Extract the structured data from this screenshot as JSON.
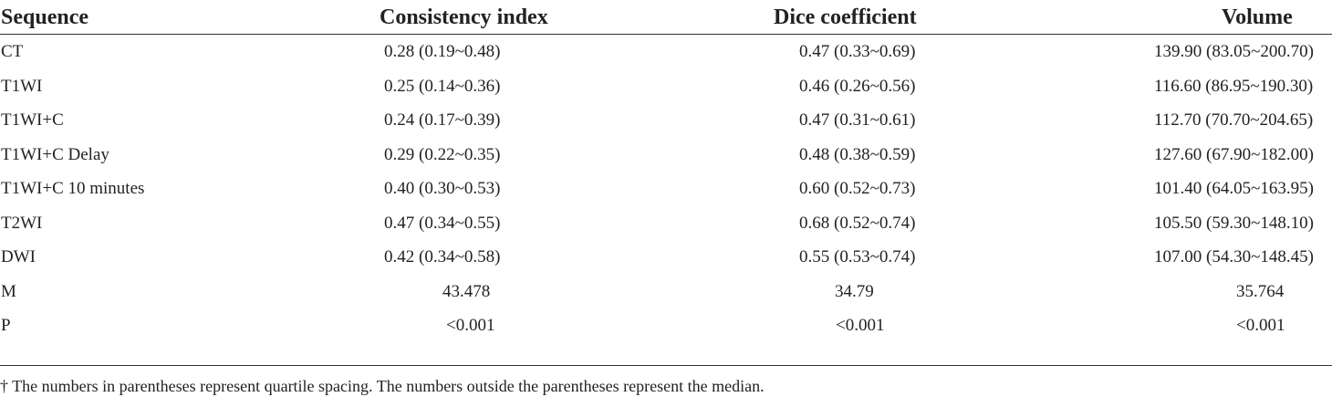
{
  "table": {
    "headers": [
      "Sequence",
      "Consistency index",
      "Dice coefficient",
      "Volume"
    ],
    "rows": [
      {
        "sequence": "CT",
        "consistency": "0.28 (0.19~0.48)",
        "dice": "0.47 (0.33~0.69)",
        "volume": "139.90 (83.05~200.70)"
      },
      {
        "sequence": "T1WI",
        "consistency": "0.25 (0.14~0.36)",
        "dice": "0.46 (0.26~0.56)",
        "volume": "116.60 (86.95~190.30)"
      },
      {
        "sequence": "T1WI+C",
        "consistency": "0.24 (0.17~0.39)",
        "dice": "0.47 (0.31~0.61)",
        "volume": "112.70 (70.70~204.65)"
      },
      {
        "sequence": "T1WI+C Delay",
        "consistency": "0.29 (0.22~0.35)",
        "dice": "0.48 (0.38~0.59)",
        "volume": "127.60 (67.90~182.00)"
      },
      {
        "sequence": "T1WI+C 10 minutes",
        "consistency": "0.40 (0.30~0.53)",
        "dice": "0.60 (0.52~0.73)",
        "volume": "101.40 (64.05~163.95)"
      },
      {
        "sequence": "T2WI",
        "consistency": "0.47 (0.34~0.55)",
        "dice": "0.68 (0.52~0.74)",
        "volume": "105.50 (59.30~148.10)"
      },
      {
        "sequence": "DWI",
        "consistency": "0.42 (0.34~0.58)",
        "dice": "0.55 (0.53~0.74)",
        "volume": "107.00 (54.30~148.45)"
      },
      {
        "sequence": "M",
        "consistency": "43.478",
        "dice": "34.79",
        "volume": "35.764"
      },
      {
        "sequence": "P",
        "consistency": "<0.001",
        "dice": "<0.001",
        "volume": "<0.001"
      }
    ],
    "footnote": "† The numbers in parentheses represent quartile spacing. The numbers outside the parentheses represent the median."
  }
}
